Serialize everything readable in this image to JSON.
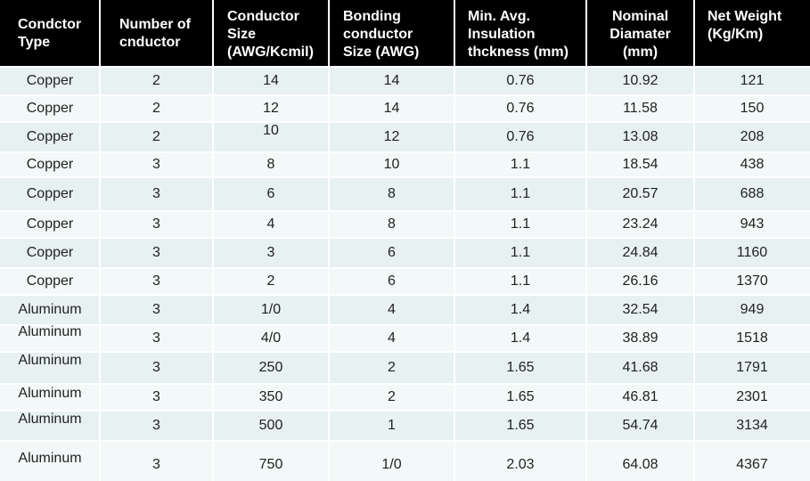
{
  "table": {
    "headers": [
      "Condctor\nType",
      "Number of\ncnductor",
      "Conductor\nSize\n(AWG/Kcmil)",
      "Bonding\nconductor\nSize (AWG)",
      "Min. Avg.\nInsulation\nthckness (mm)",
      "Nominal\nDiamater\n(mm)",
      "Net Weight\n(Kg/Km)"
    ],
    "rows": [
      [
        "Copper",
        "2",
        "14",
        "14",
        "0.76",
        "10.92",
        "121"
      ],
      [
        "Copper",
        "2",
        "12",
        "14",
        "0.76",
        "11.58",
        "150"
      ],
      [
        "Copper",
        "2",
        "10",
        "12",
        "0.76",
        "13.08",
        "208"
      ],
      [
        "Copper",
        "3",
        "8",
        "10",
        "1.1",
        "18.54",
        "438"
      ],
      [
        "Copper",
        "3",
        "6",
        "8",
        "1.1",
        "20.57",
        "688"
      ],
      [
        "Copper",
        "3",
        "4",
        "8",
        "1.1",
        "23.24",
        "943"
      ],
      [
        "Copper",
        "3",
        "3",
        "6",
        "1.1",
        "24.84",
        "1160"
      ],
      [
        "Copper",
        "3",
        "2",
        "6",
        "1.1",
        "26.16",
        "1370"
      ],
      [
        "Aluminum",
        "3",
        "1/0",
        "4",
        "1.4",
        "32.54",
        "949"
      ],
      [
        "Aluminum",
        "3",
        "4/0",
        "4",
        "1.4",
        "38.89",
        "1518"
      ],
      [
        "Aluminum",
        "3",
        "250",
        "2",
        "1.65",
        "41.68",
        "1791"
      ],
      [
        "Aluminum",
        "3",
        "350",
        "2",
        "1.65",
        "46.81",
        "2301"
      ],
      [
        "Aluminum",
        "3",
        "500",
        "1",
        "1.65",
        "54.74",
        "3134"
      ],
      [
        "Aluminum",
        "3",
        "750",
        "1/0",
        "2.03",
        "64.08",
        "4367"
      ]
    ]
  }
}
